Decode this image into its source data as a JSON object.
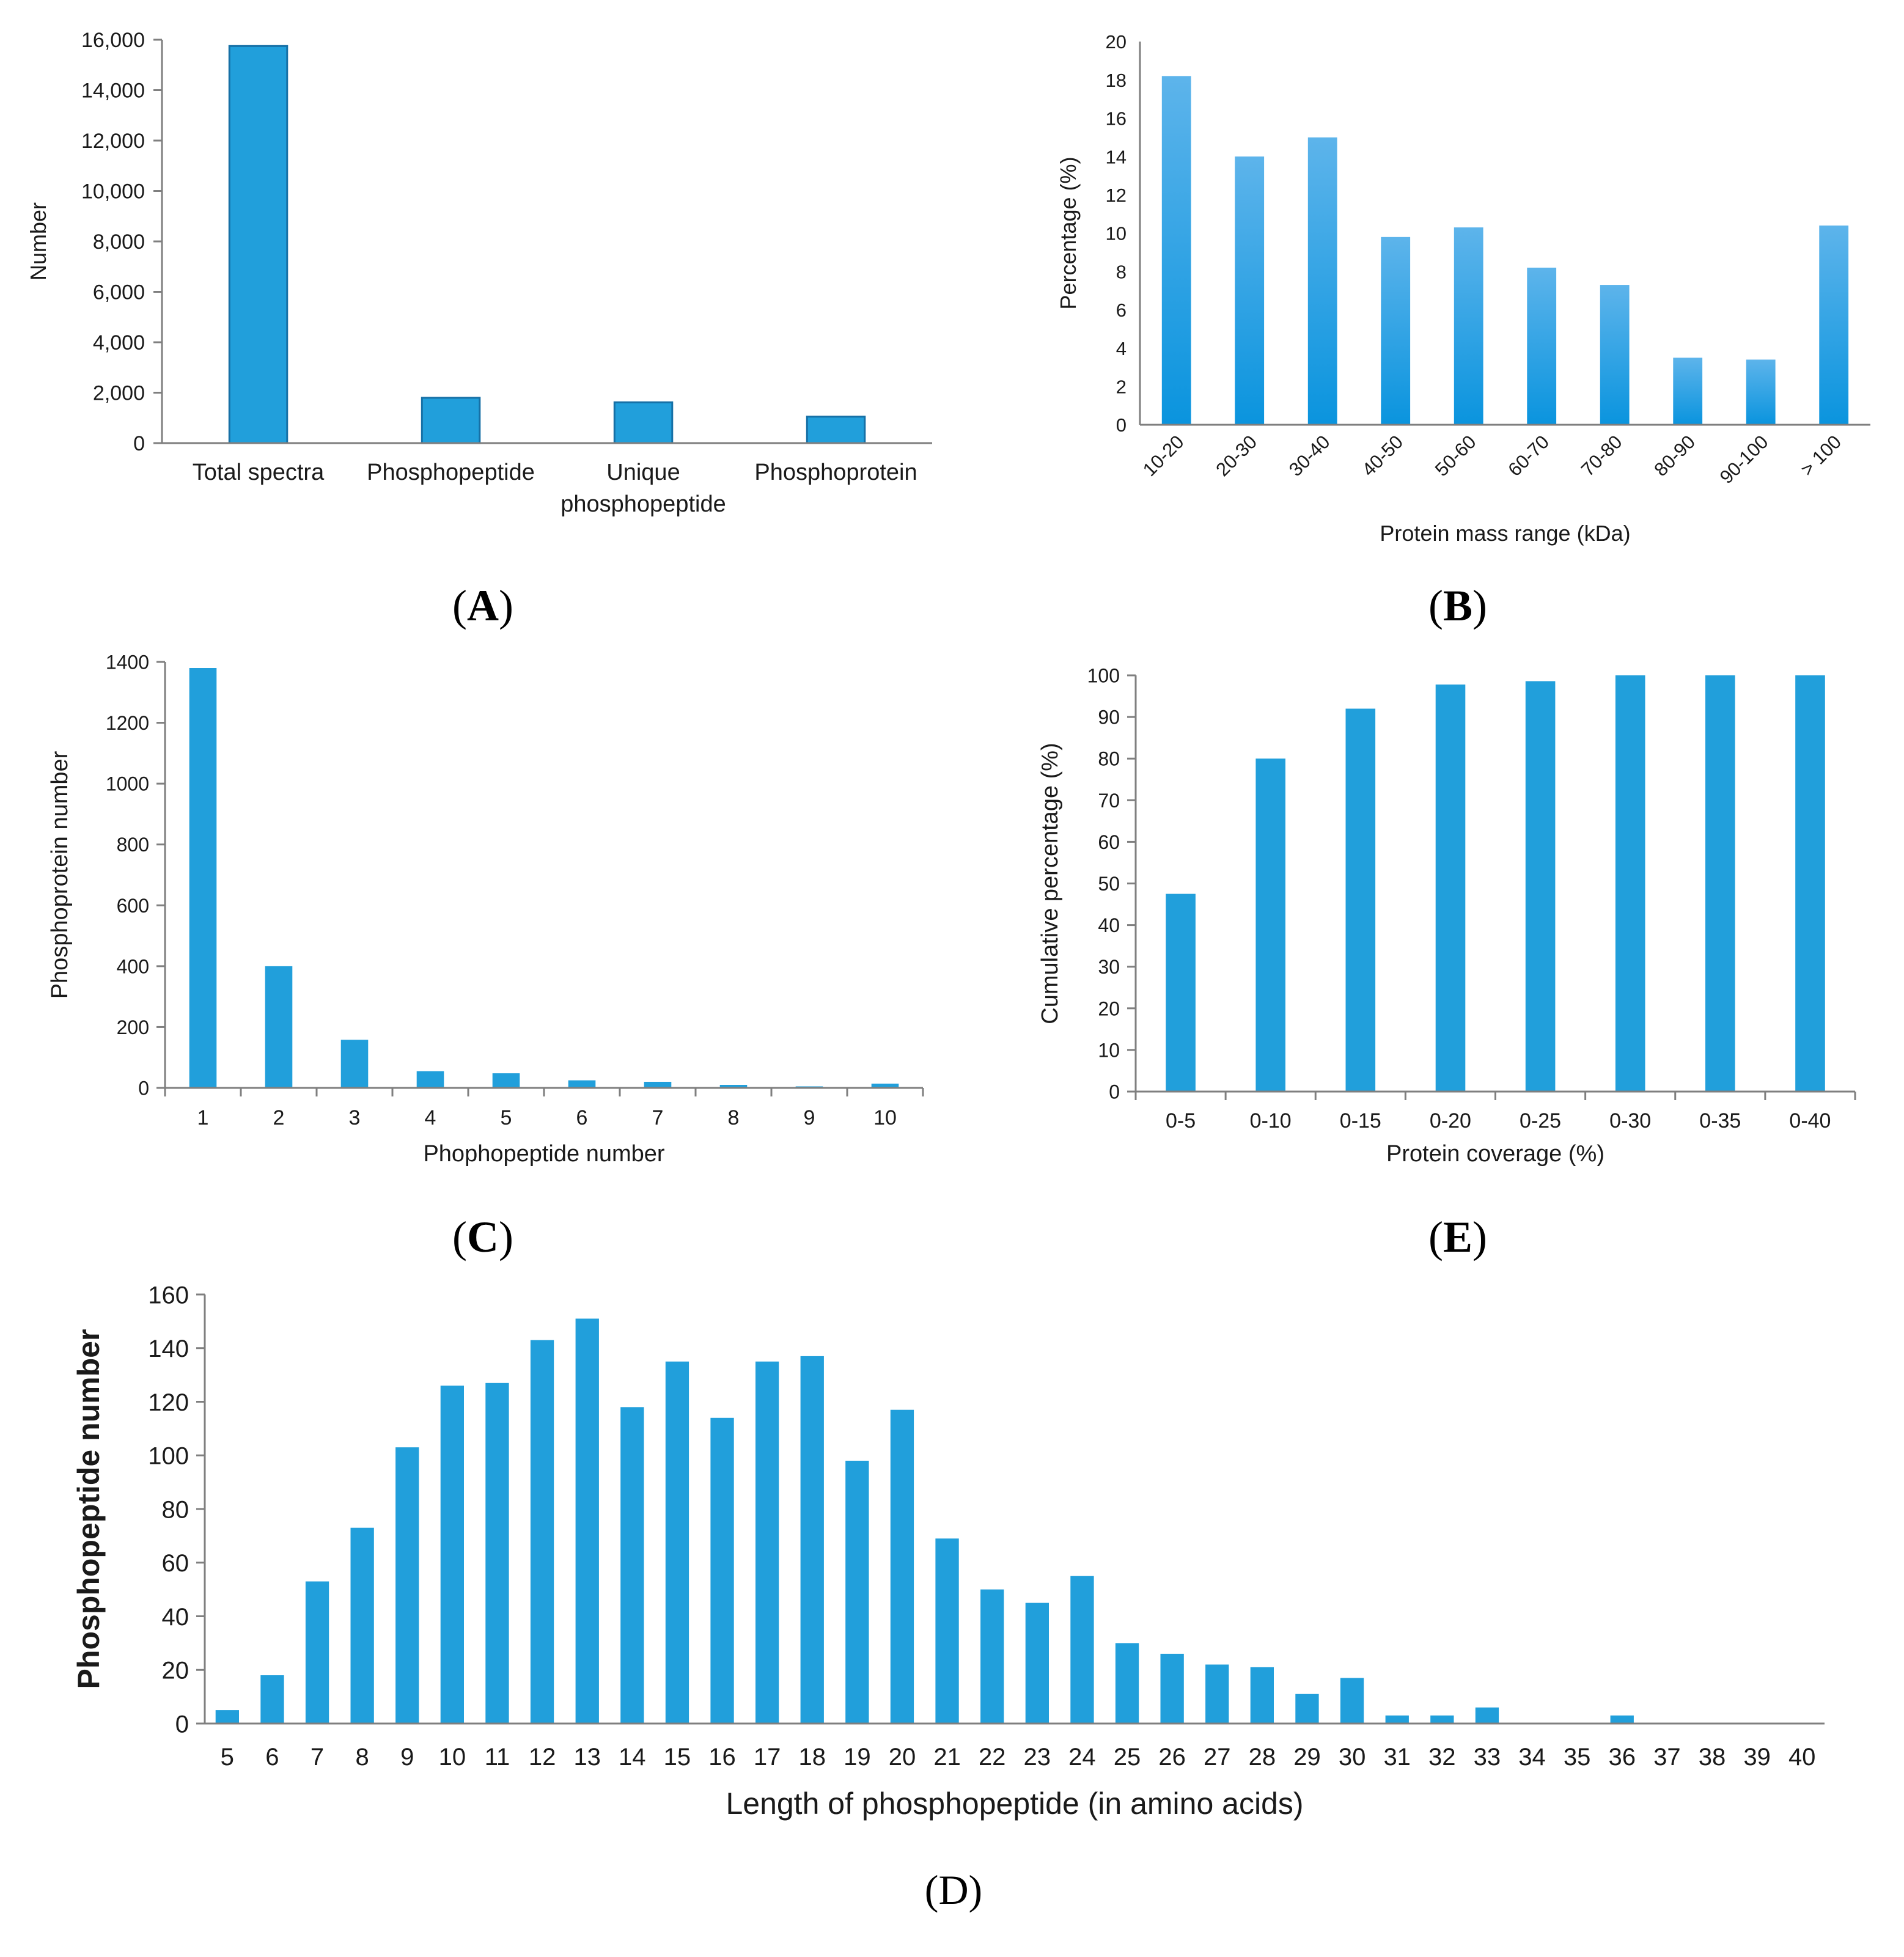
{
  "figure": {
    "panel_labels": {
      "A": {
        "letter": "A",
        "text": "(A)"
      },
      "B": {
        "letter": "B",
        "text": "(B)"
      },
      "C": {
        "letter": "C",
        "text": "(C)"
      },
      "E": {
        "letter": "E",
        "text": "(E)"
      },
      "D": {
        "letter": "D",
        "text": "(D)"
      }
    }
  },
  "colors": {
    "bar": "#219FDB",
    "bar_stroke": "#1670A6",
    "gradient_top": "#5DB4EB",
    "gradient_bottom": "#0A94DE",
    "axis": "#7f7f7f"
  },
  "chart_data": [
    {
      "id": "A",
      "type": "bar",
      "title": "",
      "xlabel": "",
      "ylabel": "Number",
      "ylim": [
        0,
        16000
      ],
      "yticks": [
        0,
        2000,
        4000,
        6000,
        8000,
        10000,
        12000,
        14000,
        16000
      ],
      "ytick_labels": [
        "0",
        "2,000",
        "4,000",
        "6,000",
        "8,000",
        "10,000",
        "12,000",
        "14,000",
        "16,000"
      ],
      "categories": [
        [
          "Total spectra"
        ],
        [
          "Phosphopeptide"
        ],
        [
          "Unique",
          "phosphopeptide"
        ],
        [
          "Phosphoprotein"
        ]
      ],
      "values": [
        15750,
        1800,
        1620,
        1050
      ],
      "grid": false,
      "bar_style": "outlined"
    },
    {
      "id": "B",
      "type": "bar",
      "title": "",
      "xlabel": "Protein mass range (kDa)",
      "ylabel": "Percentage (%)",
      "ylim": [
        0,
        20
      ],
      "yticks": [
        0,
        2,
        4,
        6,
        8,
        10,
        12,
        14,
        16,
        18,
        20
      ],
      "ytick_labels": [
        "0",
        "2",
        "4",
        "6",
        "8",
        "10",
        "12",
        "14",
        "16",
        "18",
        "20"
      ],
      "categories": [
        [
          "10-20"
        ],
        [
          "20-30"
        ],
        [
          "30-40"
        ],
        [
          "40-50"
        ],
        [
          "50-60"
        ],
        [
          "60-70"
        ],
        [
          "70-80"
        ],
        [
          "80-90"
        ],
        [
          "90-100"
        ],
        [
          "> 100"
        ]
      ],
      "values": [
        18.2,
        14.0,
        15.0,
        9.8,
        10.3,
        8.2,
        7.3,
        3.5,
        3.4,
        10.4
      ],
      "grid": false,
      "bar_style": "gradient",
      "xtick_rotation": -45
    },
    {
      "id": "C",
      "type": "bar",
      "title": "",
      "xlabel": "Phophopeptide  number",
      "ylabel": "Phosphoprotein number",
      "ylim": [
        0,
        1400
      ],
      "yticks": [
        0,
        200,
        400,
        600,
        800,
        1000,
        1200,
        1400
      ],
      "ytick_labels": [
        "0",
        "200",
        "400",
        "600",
        "800",
        "1000",
        "1200",
        "1400"
      ],
      "categories": [
        [
          "1"
        ],
        [
          "2"
        ],
        [
          "3"
        ],
        [
          "4"
        ],
        [
          "5"
        ],
        [
          "6"
        ],
        [
          "7"
        ],
        [
          "8"
        ],
        [
          "9"
        ],
        [
          "10"
        ]
      ],
      "values": [
        1380,
        400,
        158,
        55,
        48,
        25,
        20,
        10,
        5,
        14
      ],
      "grid": false,
      "bar_style": "solid"
    },
    {
      "id": "E",
      "type": "bar",
      "title": "",
      "xlabel": "Protein coverage (%)",
      "ylabel": "Cumulative  percentage (%)",
      "ylim": [
        0,
        100
      ],
      "yticks": [
        0,
        10,
        20,
        30,
        40,
        50,
        60,
        70,
        80,
        90,
        100
      ],
      "ytick_labels": [
        "0",
        "10",
        "20",
        "30",
        "40",
        "50",
        "60",
        "70",
        "80",
        "90",
        "100"
      ],
      "categories": [
        [
          "0-5"
        ],
        [
          "0-10"
        ],
        [
          "0-15"
        ],
        [
          "0-20"
        ],
        [
          "0-25"
        ],
        [
          "0-30"
        ],
        [
          "0-35"
        ],
        [
          "0-40"
        ]
      ],
      "values": [
        47.5,
        80,
        92,
        97.8,
        98.6,
        100,
        100,
        100
      ],
      "grid": false,
      "bar_style": "solid"
    },
    {
      "id": "D",
      "type": "bar",
      "title": "",
      "xlabel": "Length of phosphopeptide (in amino acids)",
      "ylabel": "Phosphopeptide number",
      "ylim": [
        0,
        160
      ],
      "yticks": [
        0,
        20,
        40,
        60,
        80,
        100,
        120,
        140,
        160
      ],
      "ytick_labels": [
        "0",
        "20",
        "40",
        "60",
        "80",
        "100",
        "120",
        "140",
        "160"
      ],
      "categories": [
        [
          "5"
        ],
        [
          "6"
        ],
        [
          "7"
        ],
        [
          "8"
        ],
        [
          "9"
        ],
        [
          "10"
        ],
        [
          "11"
        ],
        [
          "12"
        ],
        [
          "13"
        ],
        [
          "14"
        ],
        [
          "15"
        ],
        [
          "16"
        ],
        [
          "17"
        ],
        [
          "18"
        ],
        [
          "19"
        ],
        [
          "20"
        ],
        [
          "21"
        ],
        [
          "22"
        ],
        [
          "23"
        ],
        [
          "24"
        ],
        [
          "25"
        ],
        [
          "26"
        ],
        [
          "27"
        ],
        [
          "28"
        ],
        [
          "29"
        ],
        [
          "30"
        ],
        [
          "31"
        ],
        [
          "32"
        ],
        [
          "33"
        ],
        [
          "34"
        ],
        [
          "35"
        ],
        [
          "36"
        ],
        [
          "37"
        ],
        [
          "38"
        ],
        [
          "39"
        ],
        [
          "40"
        ]
      ],
      "values": [
        5,
        18,
        53,
        73,
        103,
        126,
        127,
        143,
        151,
        118,
        135,
        114,
        135,
        137,
        98,
        117,
        69,
        50,
        45,
        55,
        30,
        26,
        22,
        21,
        11,
        17,
        3,
        3,
        6,
        0,
        0,
        3,
        0,
        0,
        0,
        0
      ],
      "grid": false,
      "bar_style": "solid"
    }
  ]
}
